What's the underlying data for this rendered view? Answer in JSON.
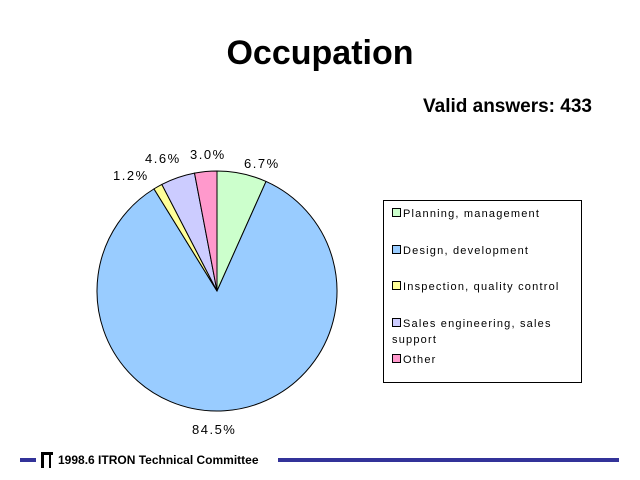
{
  "title": "Occupation",
  "subtitle": "Valid answers: 433",
  "chart_data": {
    "type": "pie",
    "title": "Occupation",
    "total_label": "Valid answers: 433",
    "start_angle_deg": 0,
    "direction": "clockwise",
    "slices": [
      {
        "name": "Planning, management",
        "value": 6.7,
        "label": "6.7%",
        "color": "#ccffcc"
      },
      {
        "name": "Design, development",
        "value": 84.5,
        "label": "84.5%",
        "color": "#99ccff"
      },
      {
        "name": "Inspection, quality control",
        "value": 1.2,
        "label": "1.2%",
        "color": "#ffff99"
      },
      {
        "name": "Sales engineering, sales support",
        "value": 4.6,
        "label": "4.6%",
        "color": "#ccccff"
      },
      {
        "name": "Other",
        "value": 3.0,
        "label": "3.0%",
        "color": "#ff99cc"
      }
    ],
    "legend_position": "right"
  },
  "legend": {
    "items": [
      {
        "label": "Planning, management",
        "color": "#ccffcc"
      },
      {
        "label": "Design, development",
        "color": "#99ccff"
      },
      {
        "label": "Inspection, quality control",
        "color": "#ffff99"
      },
      {
        "label": "Sales engineering, sales support",
        "color": "#ccccff"
      },
      {
        "label": "Other",
        "color": "#ff99cc"
      }
    ]
  },
  "footer": {
    "text": "1998.6  ITRON Technical Committee",
    "accent_color": "#333399",
    "logo_icon": "itron-logo-icon"
  }
}
